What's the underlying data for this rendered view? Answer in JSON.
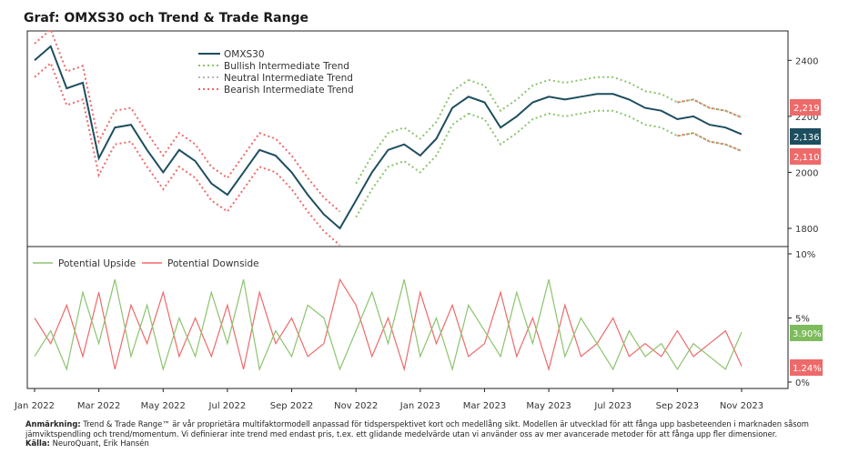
{
  "title": "Graf: OMXS30 och Trend & Trade Range",
  "colors": {
    "omx": "#1d4e5f",
    "bullish": "#8cc46e",
    "neutral": "#b5b5b5",
    "bearish": "#ee6a6a",
    "upside": "#8cc46e",
    "downside": "#ee6a6a",
    "badge_green": "#7dbb5d",
    "badge_red": "#ee6a6a",
    "badge_dark": "#1d4e5f"
  },
  "footnote": {
    "note_label": "Anmärkning:",
    "note_text": "Trend & Trade Range™ är vår proprietära multifaktormodell anpassad för tidsperspektivet kort och medellång sikt. Modellen är utvecklad för att fånga upp basbeteenden i marknaden såsom jämviktspendling och trend/momentum. Vi definierar inte trend med endast pris, t.ex. ett glidande medelvärde utan vi använder oss av mer avancerade metoder för att fånga upp fler dimensioner.",
    "source_label": "Källa:",
    "source_text": "NeuroQuant, Erik Hansén"
  },
  "chart_data": [
    {
      "type": "line",
      "title": "Graf: OMXS30 och Trend & Trade Range",
      "x_ticks": [
        "Jan 2022",
        "Mar 2022",
        "May 2022",
        "Jul 2022",
        "Sep 2022",
        "Nov 2022",
        "Jan 2023",
        "Mar 2023",
        "May 2023",
        "Jul 2023",
        "Sep 2023",
        "Nov 2023"
      ],
      "ylim": [
        1735,
        2505
      ],
      "y_ticks": [
        1800,
        2000,
        2200,
        2400
      ],
      "legend": [
        "OMXS30",
        "Bullish Intermediate Trend",
        "Neutral Intermediate Trend",
        "Bearish Intermediate Trend"
      ],
      "legend_position": "top-left",
      "x": [
        "2022-01-01",
        "2022-01-15",
        "2022-02-01",
        "2022-02-15",
        "2022-03-01",
        "2022-03-15",
        "2022-04-01",
        "2022-04-15",
        "2022-05-01",
        "2022-05-15",
        "2022-06-01",
        "2022-06-15",
        "2022-07-01",
        "2022-07-15",
        "2022-08-01",
        "2022-08-15",
        "2022-09-01",
        "2022-09-15",
        "2022-10-01",
        "2022-10-15",
        "2022-11-01",
        "2022-11-15",
        "2022-12-01",
        "2022-12-15",
        "2023-01-01",
        "2023-01-15",
        "2023-02-01",
        "2023-02-15",
        "2023-03-01",
        "2023-03-15",
        "2023-04-01",
        "2023-04-15",
        "2023-05-01",
        "2023-05-15",
        "2023-06-01",
        "2023-06-15",
        "2023-07-01",
        "2023-07-15",
        "2023-08-01",
        "2023-08-15",
        "2023-09-01",
        "2023-09-15",
        "2023-10-01",
        "2023-10-15",
        "2023-10-25"
      ],
      "series": [
        {
          "name": "OMXS30",
          "values": [
            2400,
            2450,
            2300,
            2320,
            2050,
            2160,
            2170,
            2080,
            2000,
            2080,
            2040,
            1960,
            1920,
            2000,
            2080,
            2060,
            2000,
            1920,
            1850,
            1800,
            1900,
            2000,
            2080,
            2100,
            2060,
            2120,
            2230,
            2270,
            2250,
            2160,
            2200,
            2250,
            2270,
            2260,
            2270,
            2280,
            2280,
            2260,
            2230,
            2220,
            2190,
            2200,
            2170,
            2160,
            2136
          ]
        },
        {
          "name": "Bullish Intermediate Trend",
          "segments": [
            [
              20,
              27
            ],
            [
              27,
              44
            ]
          ]
        },
        {
          "name": "Bearish Intermediate Trend",
          "segments": [
            [
              0,
              19
            ],
            [
              40,
              44
            ]
          ]
        }
      ],
      "badges": {
        "upper": "2,219",
        "current": "2,136",
        "lower": "2,110"
      }
    },
    {
      "type": "line",
      "ylim": [
        -0.5,
        10
      ],
      "y_ticks": [
        0,
        5,
        10
      ],
      "y_tick_labels": [
        "0%",
        "5%",
        "10%"
      ],
      "legend": [
        "Potential Upside",
        "Potential Downside"
      ],
      "legend_position": "top-left",
      "series": [
        {
          "name": "Potential Upside",
          "values": [
            2,
            4,
            1,
            7,
            3,
            8,
            2,
            6,
            1,
            5,
            2,
            7,
            3,
            8,
            1,
            4,
            2,
            6,
            5,
            1,
            4,
            7,
            3,
            8,
            2,
            5,
            1,
            6,
            4,
            2,
            7,
            3,
            8,
            2,
            5,
            3,
            1,
            4,
            2,
            3,
            1,
            3,
            2,
            1,
            3.9
          ]
        },
        {
          "name": "Potential Downside",
          "values": [
            5,
            3,
            6,
            2,
            7,
            1,
            6,
            3,
            7,
            2,
            5,
            2,
            6,
            1,
            7,
            3,
            5,
            2,
            3,
            8,
            6,
            2,
            5,
            1,
            7,
            3,
            6,
            2,
            3,
            7,
            2,
            5,
            1,
            6,
            2,
            3,
            5,
            2,
            3,
            2,
            4,
            2,
            3,
            4,
            1.24
          ]
        }
      ],
      "badges": {
        "upside": "3.90%",
        "downside": "1.24%"
      }
    }
  ]
}
